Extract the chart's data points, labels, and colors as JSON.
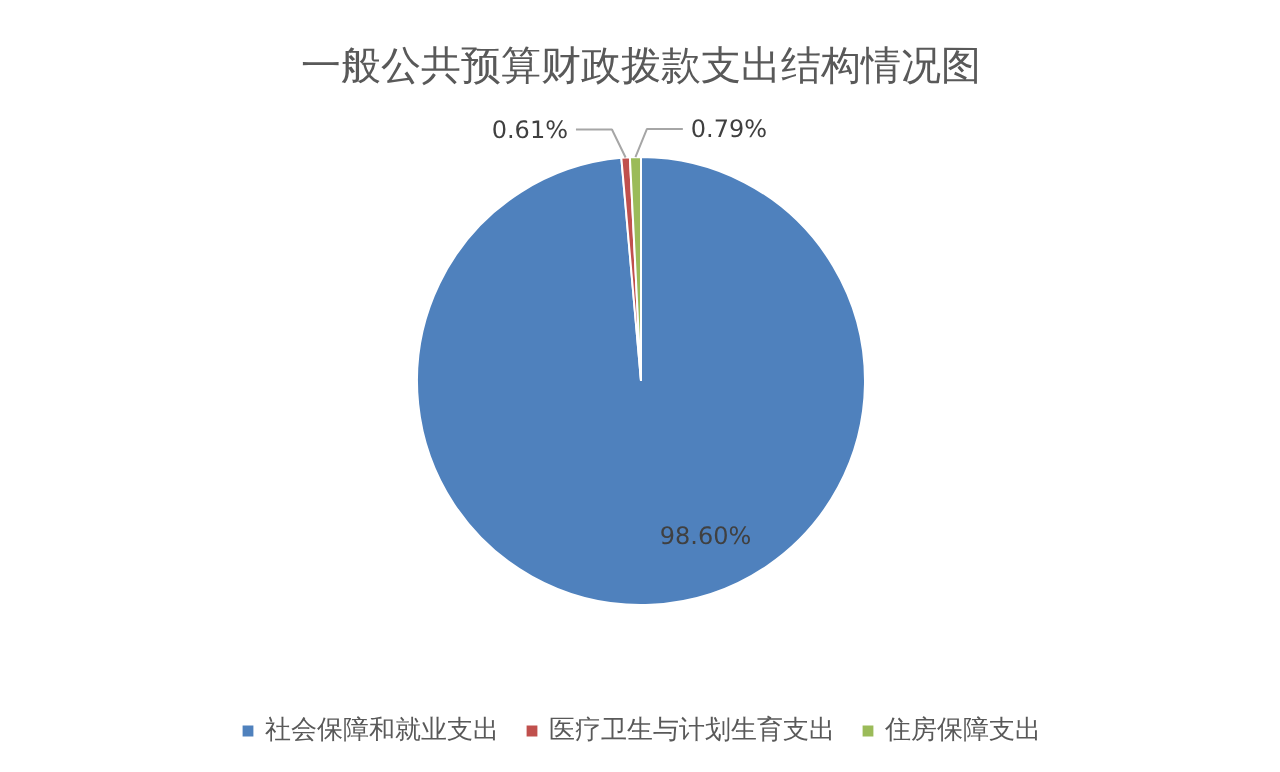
{
  "chart_data": {
    "type": "pie",
    "title": "一般公共预算财政拨款支出结构情况图",
    "categories": [
      "社会保障和就业支出",
      "医疗卫生与计划生育支出",
      "住房保障支出"
    ],
    "values": [
      98.6,
      0.61,
      0.79
    ],
    "colors": [
      "#4f81bd",
      "#c0504d",
      "#9bbb59"
    ],
    "value_labels": [
      "98.60%",
      "0.61%",
      "0.79%"
    ],
    "legend": "bottom"
  }
}
